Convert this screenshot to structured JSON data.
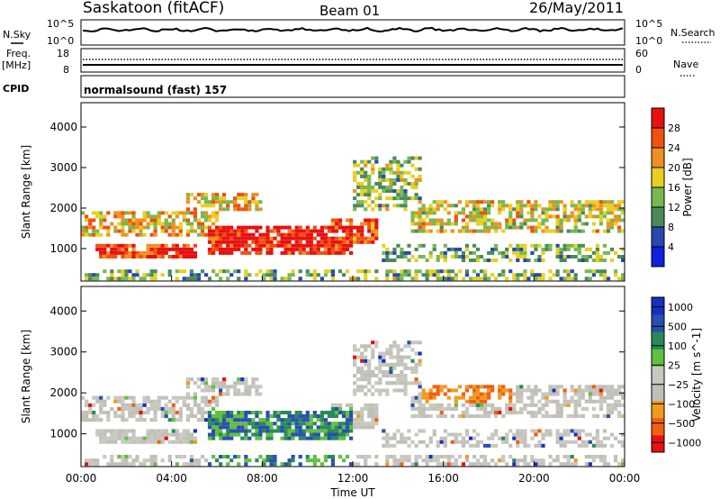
{
  "header": {
    "station": "Saskatoon (fitACF)",
    "beam": "Beam 01",
    "date": "26/May/2011"
  },
  "left_labels": {
    "nsky": "N.Sky",
    "freq": "Freq.",
    "mhz": "[MHz]",
    "cpid": "CPID"
  },
  "right_labels": {
    "nsearch": "N.Search",
    "nave": "Nave"
  },
  "cpid_text": "normalsound (fast) 157",
  "noise_panel": {
    "left_ticks": [
      "10^5",
      "10^0"
    ],
    "right_ticks": [
      "10^5",
      "10^0"
    ]
  },
  "freq_panel": {
    "left_ticks": [
      "18",
      "8"
    ],
    "right_ticks": [
      "60",
      "0"
    ]
  },
  "colors": {
    "power": [
      "#1020e0",
      "#2848b0",
      "#4a8a5a",
      "#78b850",
      "#e8d020",
      "#f09020",
      "#f05010",
      "#e81010"
    ],
    "velocity": [
      "#e81010",
      "#f06010",
      "#f09a20",
      "#c0c0b8",
      "#c8c8c0",
      "#60c040",
      "#2a8a5a",
      "#2850b0",
      "#1830c0"
    ]
  },
  "chart_data": [
    {
      "type": "heatmap",
      "name": "power",
      "ylabel": "Slant Range [km]",
      "ylim": [
        200,
        4600
      ],
      "yticks": [
        1000,
        2000,
        3000,
        4000
      ],
      "xlim": [
        0,
        24
      ],
      "colorbar_label": "Power [dB]",
      "colorbar_ticks": [
        "4",
        "8",
        "12",
        "16",
        "20",
        "24",
        "28"
      ],
      "colorbar_range": [
        0,
        32
      ]
    },
    {
      "type": "heatmap",
      "name": "velocity",
      "ylabel": "Slant Range [km]",
      "ylim": [
        200,
        4600
      ],
      "yticks": [
        1000,
        2000,
        3000,
        4000
      ],
      "xlim": [
        0,
        24
      ],
      "xlabel": "Time UT",
      "xtick_labels": [
        "00:00",
        "04:00",
        "08:00",
        "12:00",
        "16:00",
        "20:00",
        "00:00"
      ],
      "colorbar_label": "Velocity [m s^-1]",
      "colorbar_ticks": [
        "1000",
        "500",
        "100",
        "25",
        "−25",
        "−100",
        "−500",
        "−1000"
      ]
    }
  ]
}
